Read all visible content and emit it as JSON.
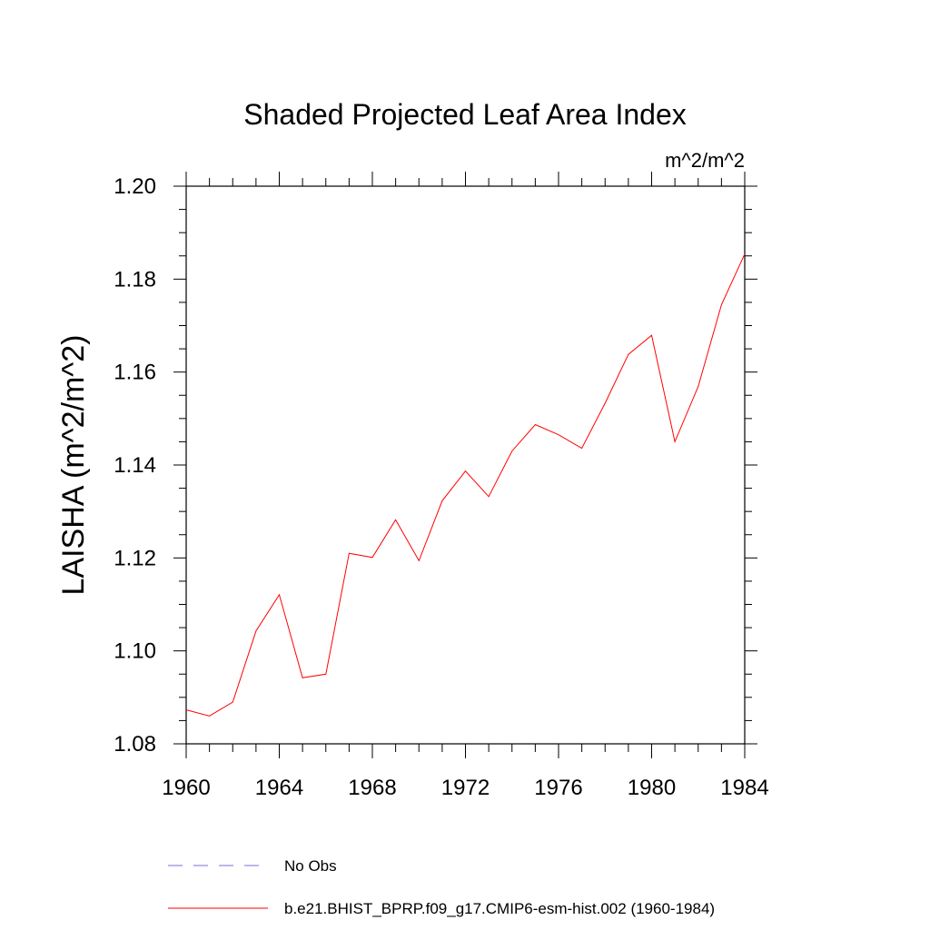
{
  "chart_data": {
    "type": "line",
    "title": "Shaded Projected Leaf Area Index",
    "units_label": "m^2/m^2",
    "ylabel": "LAISHA  (m^2/m^2)",
    "xlabel": "",
    "xlim": [
      1960,
      1984
    ],
    "ylim": [
      1.08,
      1.2
    ],
    "x_ticks": [
      1960,
      1964,
      1968,
      1972,
      1976,
      1980,
      1984
    ],
    "x_tick_labels": [
      "1960",
      "1964",
      "1968",
      "1972",
      "1976",
      "1980",
      "1984"
    ],
    "y_ticks": [
      1.08,
      1.1,
      1.12,
      1.14,
      1.16,
      1.18,
      1.2
    ],
    "y_tick_labels": [
      "1.08",
      "1.10",
      "1.12",
      "1.14",
      "1.16",
      "1.18",
      "1.20"
    ],
    "grid": false,
    "legend_position": "bottom",
    "series": [
      {
        "name": "b.e21.BHIST_BPRP.f09_g17.CMIP6-esm-hist.002 (1960-1984)",
        "color": "#ff0000",
        "line_style": "solid",
        "x": [
          1960,
          1961,
          1962,
          1963,
          1964,
          1965,
          1966,
          1967,
          1968,
          1969,
          1970,
          1971,
          1972,
          1973,
          1974,
          1975,
          1976,
          1977,
          1978,
          1979,
          1980,
          1981,
          1982,
          1983,
          1984
        ],
        "y": [
          1.0873,
          1.086,
          1.089,
          1.1043,
          1.1121,
          1.0942,
          1.095,
          1.121,
          1.1201,
          1.1282,
          1.1194,
          1.1323,
          1.1387,
          1.1332,
          1.143,
          1.1487,
          1.1465,
          1.1436,
          1.1533,
          1.1638,
          1.1679,
          1.145,
          1.1569,
          1.1745,
          1.1854
        ]
      }
    ],
    "legend": [
      {
        "label": "No Obs",
        "color": "#7b6fd6",
        "line_style": "dashed"
      },
      {
        "label": "b.e21.BHIST_BPRP.f09_g17.CMIP6-esm-hist.002 (1960-1984)",
        "color": "#ff0000",
        "line_style": "solid"
      }
    ]
  }
}
